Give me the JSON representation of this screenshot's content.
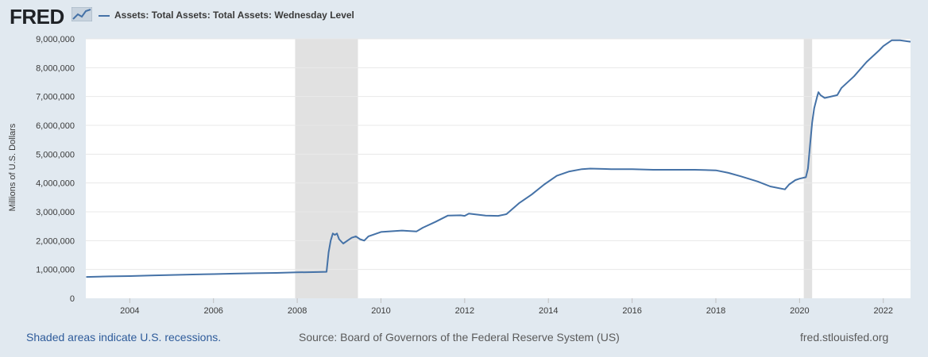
{
  "header": {
    "logo_text": "FRED",
    "legend_label": "Assets: Total Assets: Total Assets: Wednesday Level"
  },
  "footer": {
    "recession_note": "Shaded areas indicate U.S. recessions.",
    "source": "Source: Board of Governors of the Federal Reserve System (US)",
    "site": "fred.stlouisfed.org"
  },
  "colors": {
    "line": "#4572a7",
    "recession": "#e1e1e1",
    "background": "#e1e9f0",
    "plot": "#ffffff",
    "grid": "#e8e8e8"
  },
  "chart_data": {
    "type": "line",
    "title": "Assets: Total Assets: Total Assets: Wednesday Level",
    "xlabel": "",
    "ylabel": "Millions of U.S. Dollars",
    "xlim": [
      2002.95,
      2022.65
    ],
    "ylim": [
      0,
      9000000
    ],
    "grid": true,
    "x_ticks": [
      2004,
      2006,
      2008,
      2010,
      2012,
      2014,
      2016,
      2018,
      2020,
      2022
    ],
    "x_tick_labels": [
      "2004",
      "2006",
      "2008",
      "2010",
      "2012",
      "2014",
      "2016",
      "2018",
      "2020",
      "2022"
    ],
    "y_ticks": [
      0,
      1000000,
      2000000,
      3000000,
      4000000,
      5000000,
      6000000,
      7000000,
      8000000,
      9000000
    ],
    "y_tick_labels": [
      "0",
      "1,000,000",
      "2,000,000",
      "3,000,000",
      "4,000,000",
      "5,000,000",
      "6,000,000",
      "7,000,000",
      "8,000,000",
      "9,000,000"
    ],
    "recessions": [
      {
        "start": 2007.95,
        "end": 2009.45
      },
      {
        "start": 2020.1,
        "end": 2020.3
      }
    ],
    "series": [
      {
        "name": "Assets: Total Assets: Total Assets: Wednesday Level",
        "x": [
          2002.96,
          2003.5,
          2004.0,
          2004.5,
          2005.0,
          2005.5,
          2006.0,
          2006.5,
          2007.0,
          2007.5,
          2008.0,
          2008.5,
          2008.7,
          2008.75,
          2008.8,
          2008.85,
          2008.9,
          2008.95,
          2009.0,
          2009.1,
          2009.2,
          2009.3,
          2009.4,
          2009.5,
          2009.6,
          2009.7,
          2010.0,
          2010.5,
          2010.85,
          2011.0,
          2011.3,
          2011.6,
          2011.9,
          2012.0,
          2012.1,
          2012.5,
          2012.8,
          2013.0,
          2013.3,
          2013.6,
          2013.9,
          2014.2,
          2014.5,
          2014.8,
          2015.0,
          2015.5,
          2016.0,
          2016.5,
          2017.0,
          2017.5,
          2018.0,
          2018.3,
          2018.6,
          2019.0,
          2019.3,
          2019.65,
          2019.75,
          2019.9,
          2020.0,
          2020.15,
          2020.2,
          2020.25,
          2020.3,
          2020.35,
          2020.42,
          2020.45,
          2020.5,
          2020.6,
          2020.9,
          2021.0,
          2021.3,
          2021.6,
          2021.9,
          2022.0,
          2022.2,
          2022.4,
          2022.65
        ],
        "values": [
          740000,
          760000,
          770000,
          790000,
          810000,
          825000,
          840000,
          855000,
          870000,
          880000,
          900000,
          910000,
          920000,
          1600000,
          2000000,
          2250000,
          2200000,
          2250000,
          2050000,
          1900000,
          2000000,
          2100000,
          2150000,
          2050000,
          2000000,
          2150000,
          2300000,
          2350000,
          2320000,
          2450000,
          2650000,
          2870000,
          2880000,
          2860000,
          2940000,
          2870000,
          2860000,
          2920000,
          3300000,
          3600000,
          3950000,
          4250000,
          4400000,
          4480000,
          4500000,
          4480000,
          4480000,
          4460000,
          4460000,
          4460000,
          4440000,
          4350000,
          4230000,
          4050000,
          3880000,
          3780000,
          3950000,
          4100000,
          4150000,
          4200000,
          4500000,
          5300000,
          6100000,
          6600000,
          7000000,
          7150000,
          7050000,
          6950000,
          7050000,
          7300000,
          7700000,
          8200000,
          8600000,
          8750000,
          8950000,
          8950000,
          8900000
        ]
      }
    ]
  }
}
